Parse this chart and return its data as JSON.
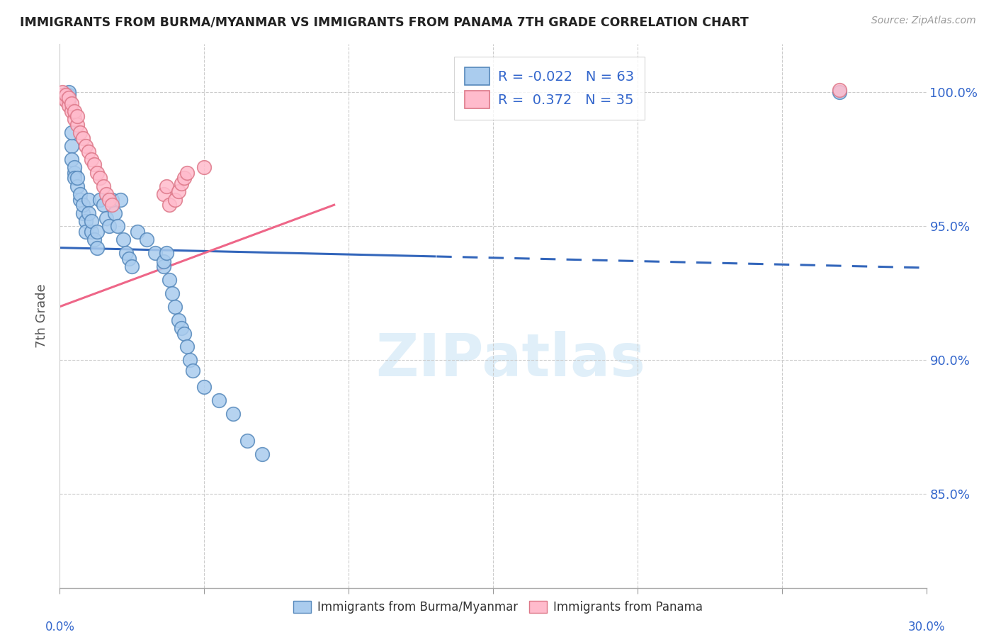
{
  "title": "IMMIGRANTS FROM BURMA/MYANMAR VS IMMIGRANTS FROM PANAMA 7TH GRADE CORRELATION CHART",
  "source": "Source: ZipAtlas.com",
  "ylabel": "7th Grade",
  "yticks": [
    0.85,
    0.9,
    0.95,
    1.0
  ],
  "ytick_labels": [
    "85.0%",
    "90.0%",
    "95.0%",
    "100.0%"
  ],
  "xmin": 0.0,
  "xmax": 0.3,
  "ymin": 0.815,
  "ymax": 1.018,
  "legend_blue_r": "-0.022",
  "legend_blue_n": "63",
  "legend_pink_r": "0.372",
  "legend_pink_n": "35",
  "blue_color": "#aaccee",
  "blue_edge": "#5588bb",
  "pink_color": "#ffbbcc",
  "pink_edge": "#dd7788",
  "blue_trendline_color": "#3366bb",
  "pink_trendline_color": "#ee6688",
  "blue_scatter_x": [
    0.001,
    0.001,
    0.002,
    0.002,
    0.002,
    0.003,
    0.003,
    0.003,
    0.003,
    0.004,
    0.004,
    0.004,
    0.005,
    0.005,
    0.005,
    0.006,
    0.006,
    0.007,
    0.007,
    0.008,
    0.008,
    0.009,
    0.009,
    0.01,
    0.01,
    0.011,
    0.011,
    0.012,
    0.013,
    0.013,
    0.014,
    0.015,
    0.016,
    0.017,
    0.018,
    0.019,
    0.02,
    0.021,
    0.022,
    0.023,
    0.024,
    0.025,
    0.027,
    0.03,
    0.033,
    0.036,
    0.036,
    0.037,
    0.038,
    0.039,
    0.04,
    0.041,
    0.042,
    0.043,
    0.044,
    0.045,
    0.046,
    0.05,
    0.055,
    0.06,
    0.065,
    0.07,
    0.27
  ],
  "blue_scatter_y": [
    0.998,
    0.999,
    0.998,
    0.999,
    0.999,
    0.997,
    0.998,
    0.999,
    1.0,
    0.98,
    0.985,
    0.975,
    0.97,
    0.972,
    0.968,
    0.965,
    0.968,
    0.96,
    0.962,
    0.955,
    0.958,
    0.952,
    0.948,
    0.96,
    0.955,
    0.948,
    0.952,
    0.945,
    0.942,
    0.948,
    0.96,
    0.958,
    0.953,
    0.95,
    0.96,
    0.955,
    0.95,
    0.96,
    0.945,
    0.94,
    0.938,
    0.935,
    0.948,
    0.945,
    0.94,
    0.935,
    0.937,
    0.94,
    0.93,
    0.925,
    0.92,
    0.915,
    0.912,
    0.91,
    0.905,
    0.9,
    0.896,
    0.89,
    0.885,
    0.88,
    0.87,
    0.865,
    1.0
  ],
  "pink_scatter_x": [
    0.001,
    0.001,
    0.001,
    0.002,
    0.002,
    0.003,
    0.003,
    0.004,
    0.004,
    0.005,
    0.005,
    0.006,
    0.006,
    0.007,
    0.008,
    0.009,
    0.01,
    0.011,
    0.012,
    0.013,
    0.014,
    0.015,
    0.016,
    0.017,
    0.018,
    0.036,
    0.037,
    0.038,
    0.04,
    0.041,
    0.042,
    0.043,
    0.044,
    0.05,
    0.27
  ],
  "pink_scatter_y": [
    0.998,
    0.999,
    1.0,
    0.997,
    0.999,
    0.995,
    0.998,
    0.993,
    0.996,
    0.99,
    0.993,
    0.988,
    0.991,
    0.985,
    0.983,
    0.98,
    0.978,
    0.975,
    0.973,
    0.97,
    0.968,
    0.965,
    0.962,
    0.96,
    0.958,
    0.962,
    0.965,
    0.958,
    0.96,
    0.963,
    0.966,
    0.968,
    0.97,
    0.972,
    1.001
  ]
}
